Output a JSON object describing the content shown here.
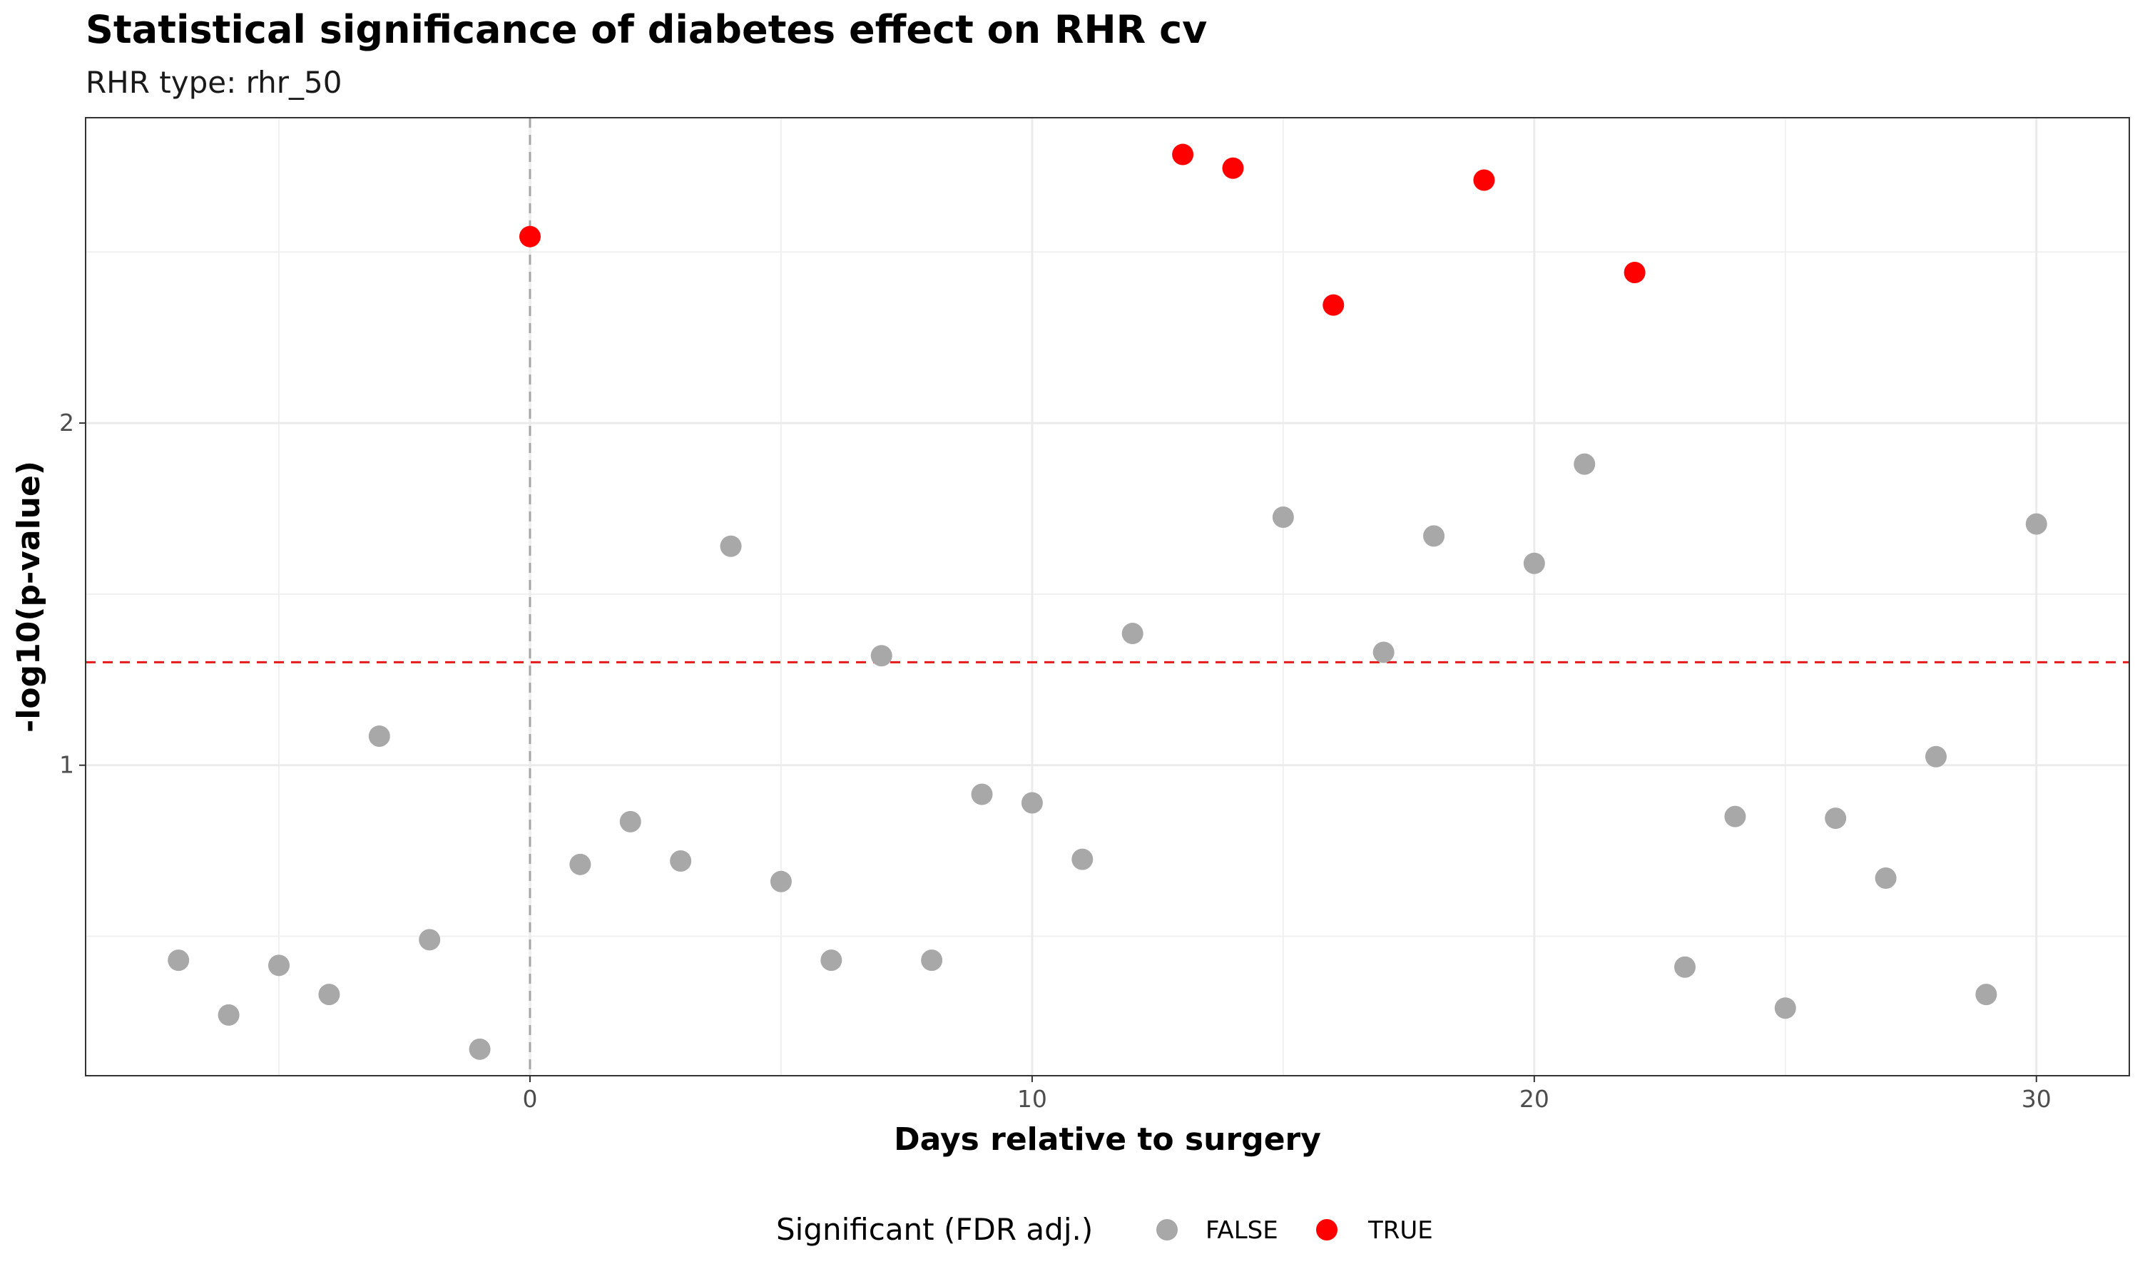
{
  "chart_data": {
    "type": "scatter",
    "title": "Statistical significance of diabetes effect on RHR cv",
    "subtitle": "RHR type: rhr_50",
    "xlabel": "Days relative to surgery",
    "ylabel": "-log10(p-value)",
    "xlim": [
      -8.85,
      31.85
    ],
    "ylim": [
      0.0925,
      2.8925
    ],
    "x_ticks": [
      0,
      10,
      20,
      30
    ],
    "y_ticks": [
      1,
      2
    ],
    "grid": true,
    "reference_lines": {
      "vertical_x": 0,
      "vertical_color": "#a6a6a6",
      "horizontal_y": 1.301,
      "horizontal_color": "#e31a1c"
    },
    "legend": {
      "title": "Significant (FDR adj.)",
      "position": "bottom",
      "entries": [
        {
          "label": "FALSE",
          "color": "#a8a8a8"
        },
        {
          "label": "TRUE",
          "color": "#ff0000"
        }
      ]
    },
    "series": [
      {
        "name": "FALSE",
        "color": "#a8a8a8",
        "points": [
          {
            "x": -7,
            "y": 0.43
          },
          {
            "x": -6,
            "y": 0.27
          },
          {
            "x": -5,
            "y": 0.415
          },
          {
            "x": -4,
            "y": 0.33
          },
          {
            "x": -3,
            "y": 1.085
          },
          {
            "x": -2,
            "y": 0.49
          },
          {
            "x": -1,
            "y": 0.17
          },
          {
            "x": 1,
            "y": 0.71
          },
          {
            "x": 2,
            "y": 0.835
          },
          {
            "x": 3,
            "y": 0.72
          },
          {
            "x": 4,
            "y": 1.64
          },
          {
            "x": 5,
            "y": 0.66
          },
          {
            "x": 6,
            "y": 0.43
          },
          {
            "x": 7,
            "y": 1.32
          },
          {
            "x": 8,
            "y": 0.43
          },
          {
            "x": 9,
            "y": 0.915
          },
          {
            "x": 10,
            "y": 0.89
          },
          {
            "x": 11,
            "y": 0.725
          },
          {
            "x": 12,
            "y": 1.385
          },
          {
            "x": 15,
            "y": 1.725
          },
          {
            "x": 17,
            "y": 1.33
          },
          {
            "x": 18,
            "y": 1.67
          },
          {
            "x": 20,
            "y": 1.59
          },
          {
            "x": 21,
            "y": 1.88
          },
          {
            "x": 23,
            "y": 0.41
          },
          {
            "x": 24,
            "y": 0.85
          },
          {
            "x": 25,
            "y": 0.29
          },
          {
            "x": 26,
            "y": 0.845
          },
          {
            "x": 27,
            "y": 0.67
          },
          {
            "x": 28,
            "y": 1.025
          },
          {
            "x": 29,
            "y": 0.33
          },
          {
            "x": 30,
            "y": 1.705
          }
        ]
      },
      {
        "name": "TRUE",
        "color": "#ff0000",
        "points": [
          {
            "x": 0,
            "y": 2.545
          },
          {
            "x": 13,
            "y": 2.785
          },
          {
            "x": 14,
            "y": 2.745
          },
          {
            "x": 16,
            "y": 2.345
          },
          {
            "x": 19,
            "y": 2.71
          },
          {
            "x": 22,
            "y": 2.44
          }
        ]
      }
    ]
  }
}
